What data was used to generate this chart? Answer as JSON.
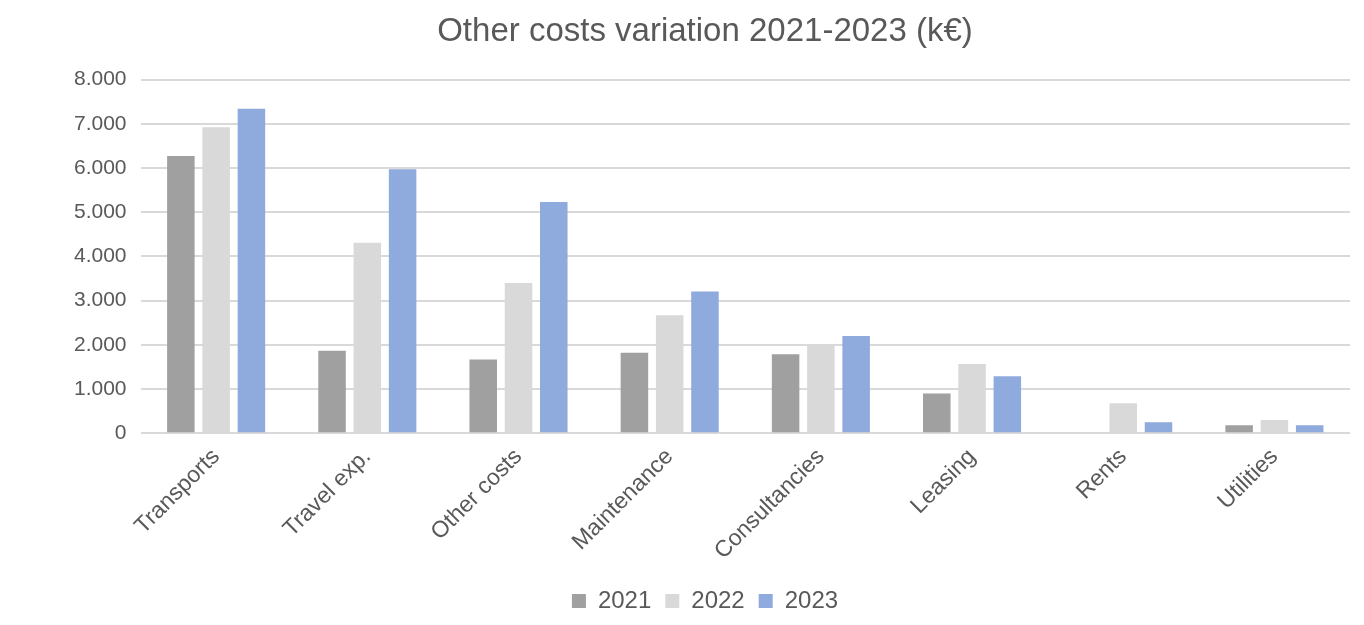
{
  "chart_data": {
    "type": "bar",
    "title": "Other costs variation 2021-2023 (k€)",
    "categories": [
      "Transports",
      "Travel exp.",
      "Other costs",
      "Maintenance",
      "Consultancies",
      "Leasing",
      "Rents",
      "Utilities"
    ],
    "series": [
      {
        "name": "2021",
        "color": "#a0a0a0",
        "values": [
          6270,
          1870,
          1670,
          1820,
          1790,
          900,
          null,
          180
        ]
      },
      {
        "name": "2022",
        "color": "#d9d9d9",
        "values": [
          6920,
          4310,
          3400,
          2670,
          1990,
          1570,
          680,
          300
        ]
      },
      {
        "name": "2023",
        "color": "#8faadc",
        "values": [
          7340,
          5970,
          5230,
          3210,
          2200,
          1290,
          250,
          180
        ]
      }
    ],
    "ylim": [
      0,
      8000
    ],
    "yticks": [
      0,
      {
        "value": 1000,
        "label": "1.000"
      },
      {
        "value": 2000,
        "label": "2.000"
      },
      {
        "value": 3000,
        "label": "3.000"
      },
      {
        "value": 4000,
        "label": "4.000"
      },
      {
        "value": 5000,
        "label": "5.000"
      },
      {
        "value": 6000,
        "label": "6.000"
      },
      {
        "value": 7000,
        "label": "7.000"
      },
      {
        "value": 8000,
        "label": "8.000"
      }
    ],
    "grid": "y",
    "legend": "bottom"
  }
}
